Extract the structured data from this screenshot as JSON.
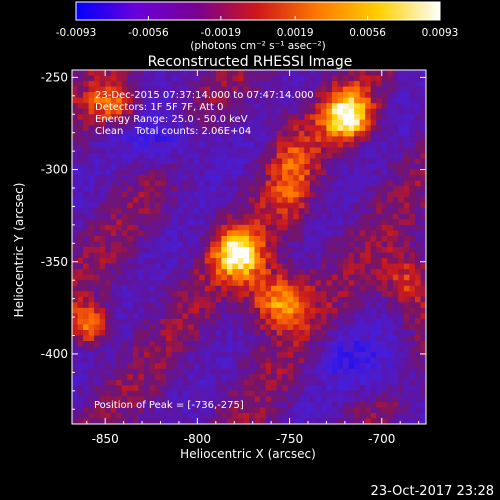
{
  "colorbar": {
    "ticks": [
      "-0.0093",
      "-0.0056",
      "-0.0019",
      "0.0019",
      "0.0056",
      "0.0093"
    ],
    "tick_values": [
      -0.0093,
      -0.0056,
      -0.0019,
      0.0019,
      0.0056,
      0.0093
    ],
    "units_label": "(photons cm⁻² s⁻¹ asec⁻²)",
    "gradient_colors": [
      "#0000ff",
      "#6a00d9",
      "#7a0090",
      "#d01818",
      "#ff7a00",
      "#ffd000",
      "#ffffff"
    ]
  },
  "image": {
    "title": "Reconstructed RHESSI Image",
    "date_line": "23-Dec-2015 07:37:14.000 to 07:47:14.000",
    "detectors_line": "Detectors: 1F 5F 7F, Att 0",
    "energy_line": "Energy Range: 25.0 - 50.0 keV",
    "clean_label": "Clean",
    "total_counts_label": "Total counts: 2.06E+04",
    "peak_label": "Position of Peak = [-736,-275]",
    "xlabel": "Heliocentric X (arcsec)",
    "ylabel": "Heliocentric Y (arcsec)",
    "xticks": [
      "-850",
      "-800",
      "-750",
      "-700"
    ],
    "xtick_values": [
      -850,
      -800,
      -750,
      -700
    ],
    "xlim": [
      -868,
      -676
    ],
    "yticks": [
      "-250",
      "-300",
      "-350",
      "-400"
    ],
    "ytick_values": [
      -250,
      -300,
      -350,
      -400
    ],
    "ylim": [
      -438,
      -246
    ]
  },
  "footer": {
    "timestamp": "23-Oct-2017 23:28"
  }
}
